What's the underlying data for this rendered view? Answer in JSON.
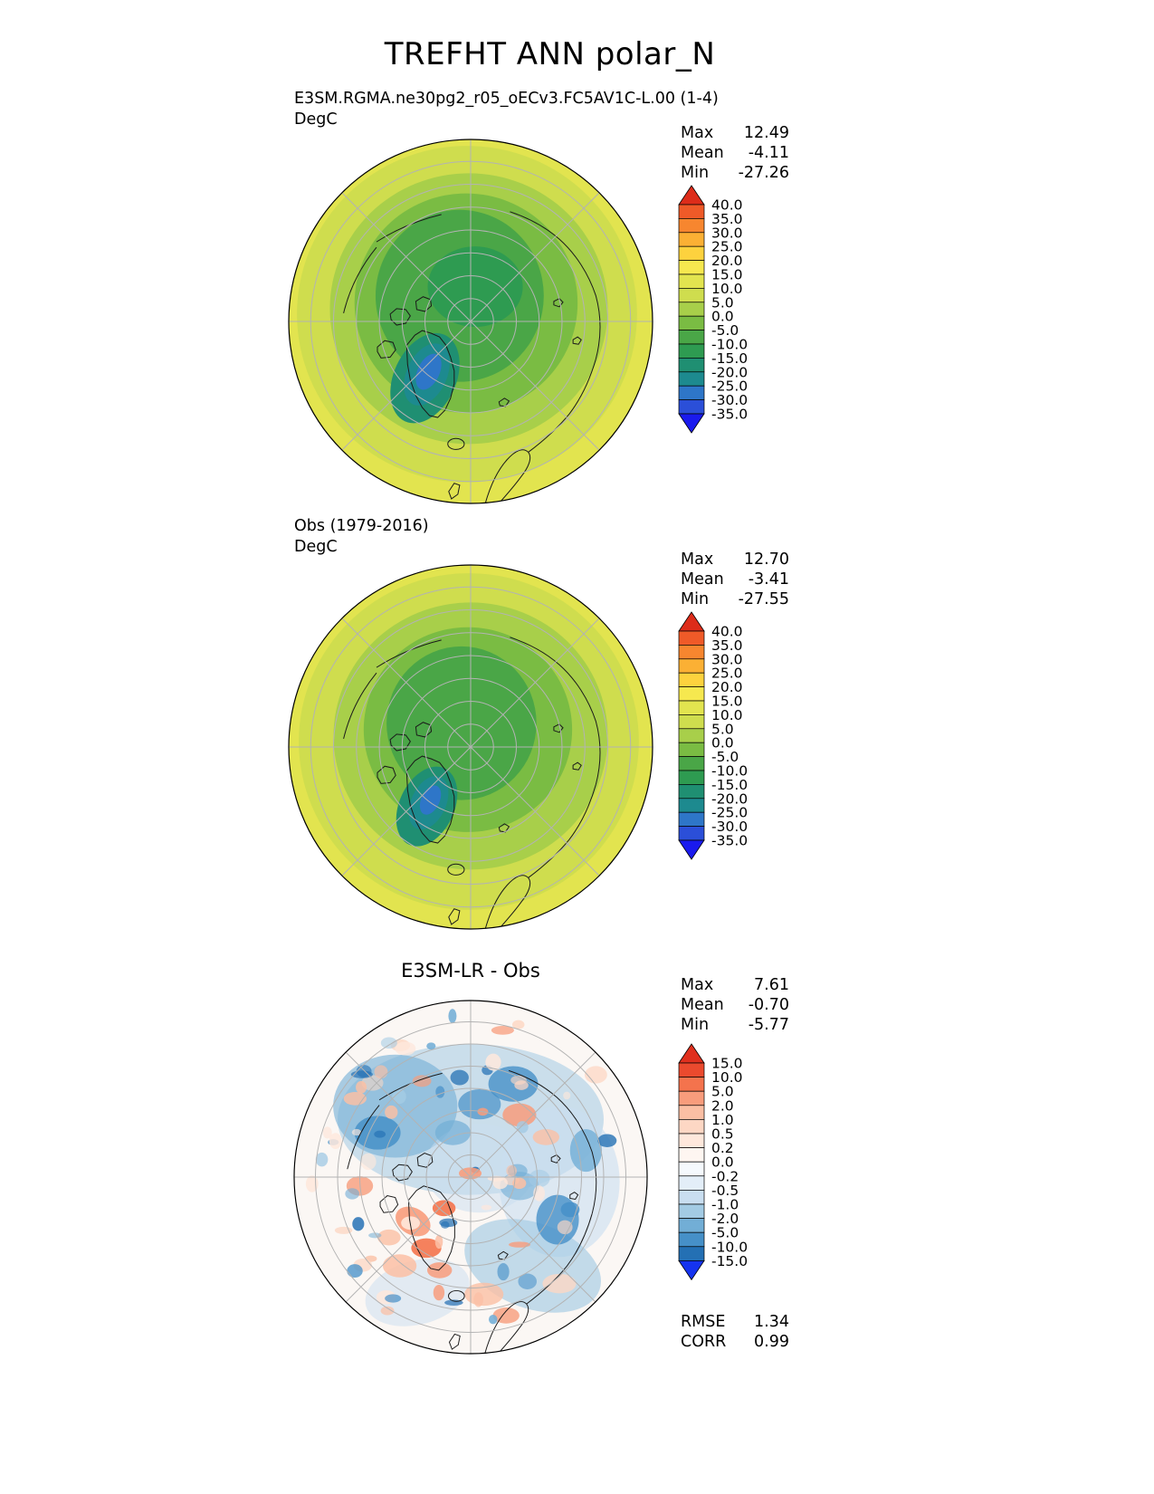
{
  "page_title": "TREFHT ANN polar_N",
  "labels": {
    "max": "Max",
    "mean": "Mean",
    "min": "Min",
    "rmse": "RMSE",
    "corr": "CORR"
  },
  "chart_data": [
    {
      "type": "heatmap",
      "map_kind": "north_polar_stereographic_contour",
      "title": "E3SM.RGMA.ne30pg2_r05_oECv3.FC5AV1C-L.00 (1-4)",
      "units": "DegC",
      "stats": {
        "max": "12.49",
        "mean": "-4.11",
        "min": "-27.26"
      },
      "colorbar": {
        "extend": "both",
        "levels_top_to_bottom": [
          "40.0",
          "35.0",
          "30.0",
          "25.0",
          "20.0",
          "15.0",
          "10.0",
          "5.0",
          "0.0",
          "-5.0",
          "-10.0",
          "-15.0",
          "-20.0",
          "-25.0",
          "-30.0",
          "-35.0"
        ],
        "colors_top_to_bottom": [
          "#dd2c1a",
          "#ef5a28",
          "#f7862f",
          "#fbb034",
          "#fdd23e",
          "#f6e84f",
          "#e2e44f",
          "#cfdd4e",
          "#a8cf4a",
          "#7abc43",
          "#4aa647",
          "#2e9b51",
          "#1f8f72",
          "#1d8a8f",
          "#2e76c8",
          "#2b4fd8",
          "#1a1aee"
        ]
      }
    },
    {
      "type": "heatmap",
      "map_kind": "north_polar_stereographic_contour",
      "title": "Obs (1979-2016)",
      "units": "DegC",
      "stats": {
        "max": "12.70",
        "mean": "-3.41",
        "min": "-27.55"
      },
      "colorbar": {
        "extend": "both",
        "levels_top_to_bottom": [
          "40.0",
          "35.0",
          "30.0",
          "25.0",
          "20.0",
          "15.0",
          "10.0",
          "5.0",
          "0.0",
          "-5.0",
          "-10.0",
          "-15.0",
          "-20.0",
          "-25.0",
          "-30.0",
          "-35.0"
        ],
        "colors_top_to_bottom": [
          "#dd2c1a",
          "#ef5a28",
          "#f7862f",
          "#fbb034",
          "#fdd23e",
          "#f6e84f",
          "#e2e44f",
          "#cfdd4e",
          "#a8cf4a",
          "#7abc43",
          "#4aa647",
          "#2e9b51",
          "#1f8f72",
          "#1d8a8f",
          "#2e76c8",
          "#2b4fd8",
          "#1a1aee"
        ]
      }
    },
    {
      "type": "heatmap",
      "map_kind": "north_polar_stereographic_contour_difference",
      "title": "E3SM-LR - Obs",
      "units": "DegC",
      "stats": {
        "max": "7.61",
        "mean": "-0.70",
        "min": "-5.77"
      },
      "metrics": {
        "rmse": "1.34",
        "corr": "0.99"
      },
      "colorbar": {
        "extend": "both",
        "levels_top_to_bottom": [
          "15.0",
          "10.0",
          "5.0",
          "2.0",
          "1.0",
          "0.5",
          "0.2",
          "0.0",
          "-0.2",
          "-0.5",
          "-1.0",
          "-2.0",
          "-5.0",
          "-10.0",
          "-15.0"
        ],
        "colors_top_to_bottom": [
          "#e0301e",
          "#eb4a2e",
          "#f4734d",
          "#f89c7c",
          "#fbbfa4",
          "#fdd7c4",
          "#fee8dc",
          "#fef6f1",
          "#f5f9fd",
          "#e3eef8",
          "#c9def0",
          "#a3cbe4",
          "#72aed6",
          "#4690c8",
          "#2470b4",
          "#1533ef"
        ]
      }
    }
  ]
}
